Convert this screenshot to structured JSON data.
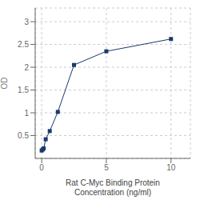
{
  "chart_data": {
    "type": "line",
    "x": [
      0.0,
      0.078,
      0.156,
      0.313,
      0.625,
      1.25,
      2.5,
      5,
      10
    ],
    "values": [
      0.172,
      0.195,
      0.22,
      0.42,
      0.6,
      1.02,
      2.05,
      2.35,
      2.62
    ],
    "color": "#1a3a6b",
    "marker": "square",
    "xlabel": "Rat C-Myc Binding Protein\nConcentration (ng/ml)",
    "ylabel": "OD",
    "xlim": [
      -0.5,
      11.5
    ],
    "ylim": [
      0.0,
      3.3
    ],
    "xticks": [
      0,
      5,
      10
    ],
    "yticks": [
      0.5,
      1.0,
      1.5,
      2.0,
      2.5,
      3.0
    ],
    "grid": true
  }
}
